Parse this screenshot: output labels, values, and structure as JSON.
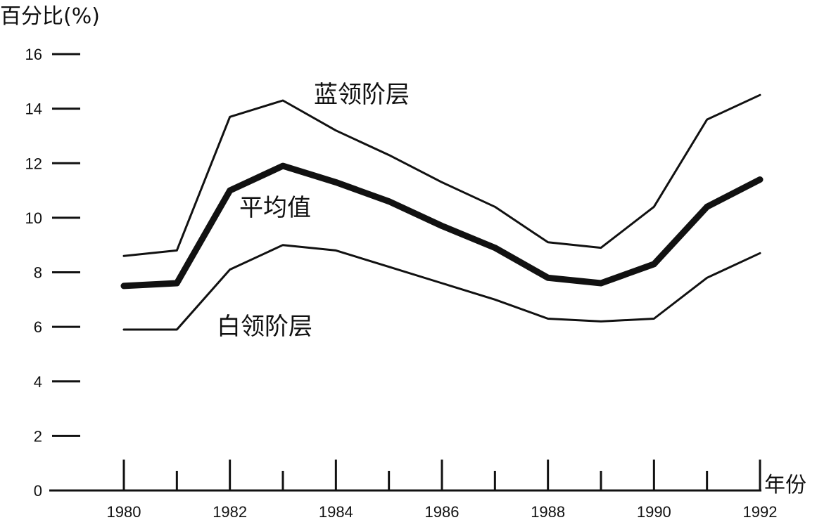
{
  "chart_data": {
    "type": "line",
    "title": "",
    "ylabel": "百分比(%)",
    "xlabel": "年份",
    "ylim": [
      0,
      16
    ],
    "xlim": [
      1980,
      1992
    ],
    "yticks": [
      0,
      2,
      4,
      6,
      8,
      10,
      12,
      14,
      16
    ],
    "yticklabels": [
      "0",
      "2",
      "4",
      "6",
      "8",
      "10",
      "12",
      "14",
      "16"
    ],
    "xticks": [
      1980,
      1981,
      1982,
      1983,
      1984,
      1985,
      1986,
      1987,
      1988,
      1989,
      1990,
      1991,
      1992
    ],
    "xticklabels": [
      "1980",
      "1982",
      "1984",
      "1986",
      "1988",
      "1990",
      "1992"
    ],
    "x": [
      1980,
      1981,
      1982,
      1983,
      1984,
      1985,
      1986,
      1987,
      1988,
      1989,
      1990,
      1991,
      1992
    ],
    "grid": false,
    "legend": "none",
    "series": [
      {
        "name": "蓝领阶层",
        "values": [
          8.6,
          8.8,
          13.7,
          14.3,
          13.2,
          12.3,
          11.3,
          10.4,
          9.1,
          8.9,
          10.4,
          13.6,
          14.5
        ]
      },
      {
        "name": "平均值",
        "values": [
          7.5,
          7.6,
          11.0,
          11.9,
          11.3,
          10.6,
          9.7,
          8.9,
          7.8,
          7.6,
          8.3,
          10.4,
          11.4
        ]
      },
      {
        "name": "白领阶层",
        "values": [
          5.9,
          5.9,
          8.1,
          9.0,
          8.8,
          8.2,
          7.6,
          7.0,
          6.3,
          6.2,
          6.3,
          7.8,
          8.7
        ]
      }
    ]
  }
}
